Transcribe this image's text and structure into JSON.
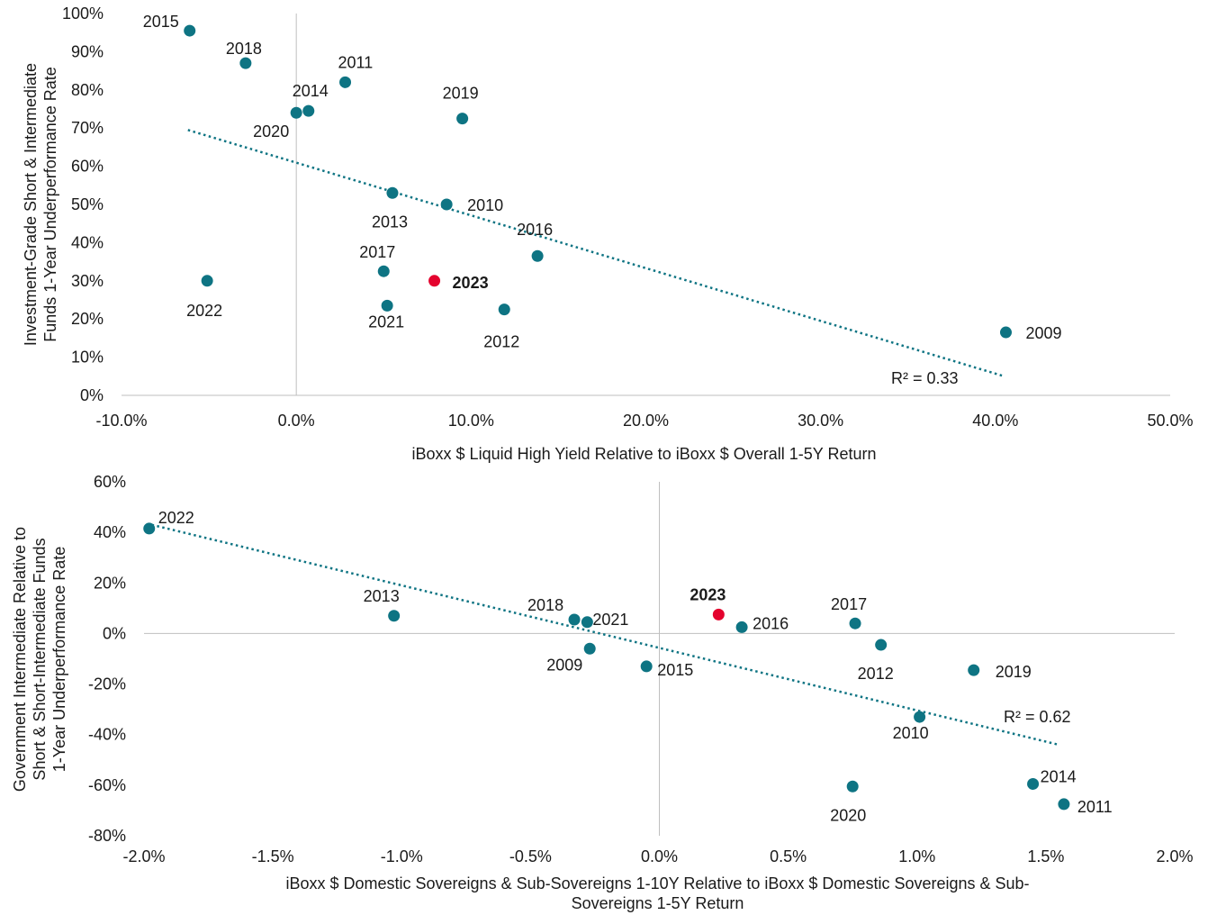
{
  "colors": {
    "point": "#0e7483",
    "highlight": "#e4032e",
    "trend": "#0e7483",
    "axis": "#bfbfbf"
  },
  "chart_data": [
    {
      "type": "scatter",
      "xlabel": "iBoxx $ Liquid High Yield Relative to iBoxx $ Overall 1-5Y Return",
      "ylabel": [
        "Investment-Grade Short & Intermediate",
        "Funds 1-Year Underperformance Rate"
      ],
      "xlim": [
        -10,
        50
      ],
      "ylim": [
        0,
        100
      ],
      "x_ticks": [
        "-10.0%",
        "0.0%",
        "10.0%",
        "20.0%",
        "30.0%",
        "40.0%",
        "50.0%"
      ],
      "y_ticks": [
        "0%",
        "10%",
        "20%",
        "30%",
        "40%",
        "50%",
        "60%",
        "70%",
        "80%",
        "90%",
        "100%"
      ],
      "trendline": {
        "x": [
          -6.2,
          40.5
        ],
        "y": [
          69.5,
          5
        ],
        "label": "R² = 0.33"
      },
      "points": [
        {
          "label": "2015",
          "x": -6.1,
          "y": 95.5
        },
        {
          "label": "2018",
          "x": -2.9,
          "y": 87
        },
        {
          "label": "2011",
          "x": 2.8,
          "y": 82
        },
        {
          "label": "2014",
          "x": 0.7,
          "y": 74.5
        },
        {
          "label": "2020",
          "x": 0.0,
          "y": 74
        },
        {
          "label": "2019",
          "x": 9.5,
          "y": 72.5
        },
        {
          "label": "2013",
          "x": 5.5,
          "y": 53
        },
        {
          "label": "2010",
          "x": 8.6,
          "y": 50
        },
        {
          "label": "2016",
          "x": 13.8,
          "y": 36.5
        },
        {
          "label": "2017",
          "x": 5.0,
          "y": 32.5
        },
        {
          "label": "2023",
          "x": 7.9,
          "y": 30,
          "highlight": true
        },
        {
          "label": "2022",
          "x": -5.1,
          "y": 30
        },
        {
          "label": "2021",
          "x": 5.2,
          "y": 23.5
        },
        {
          "label": "2012",
          "x": 11.9,
          "y": 22.5
        },
        {
          "label": "2009",
          "x": 40.6,
          "y": 16.5
        }
      ]
    },
    {
      "type": "scatter",
      "xlabel": [
        "iBoxx $ Domestic Sovereigns & Sub-Sovereigns 1-10Y Relative to iBoxx $ Domestic Sovereigns & Sub-",
        "Sovereigns 1-5Y Return"
      ],
      "ylabel": [
        "Government Intermediate Relative to",
        "Short & Short-Intermediate Funds",
        "1-Year Underperformance Rate"
      ],
      "xlim": [
        -2,
        2
      ],
      "ylim": [
        -80,
        60
      ],
      "x_ticks": [
        "-2.0%",
        "-1.5%",
        "-1.0%",
        "-0.5%",
        "0.0%",
        "0.5%",
        "1.0%",
        "1.5%",
        "2.0%"
      ],
      "y_ticks": [
        "-80%",
        "-60%",
        "-40%",
        "-20%",
        "0%",
        "20%",
        "40%",
        "60%"
      ],
      "trendline": {
        "x": [
          -1.97,
          1.55
        ],
        "y": [
          43,
          -44
        ],
        "label": "R² = 0.62"
      },
      "points": [
        {
          "label": "2022",
          "x": -1.98,
          "y": 41.5
        },
        {
          "label": "2013",
          "x": -1.03,
          "y": 7
        },
        {
          "label": "2018",
          "x": -0.33,
          "y": 5.5
        },
        {
          "label": "2021",
          "x": -0.28,
          "y": 4.5
        },
        {
          "label": "2009",
          "x": -0.27,
          "y": -6
        },
        {
          "label": "2015",
          "x": -0.05,
          "y": -13
        },
        {
          "label": "2023",
          "x": 0.23,
          "y": 7.5,
          "highlight": true
        },
        {
          "label": "2016",
          "x": 0.32,
          "y": 2.5
        },
        {
          "label": "2017",
          "x": 0.76,
          "y": 4
        },
        {
          "label": "2012",
          "x": 0.86,
          "y": -4.5
        },
        {
          "label": "2019",
          "x": 1.22,
          "y": -14.5
        },
        {
          "label": "2010",
          "x": 1.01,
          "y": -33
        },
        {
          "label": "2020",
          "x": 0.75,
          "y": -60.5
        },
        {
          "label": "2014",
          "x": 1.45,
          "y": -59.5
        },
        {
          "label": "2011",
          "x": 1.57,
          "y": -67.5
        }
      ]
    }
  ]
}
